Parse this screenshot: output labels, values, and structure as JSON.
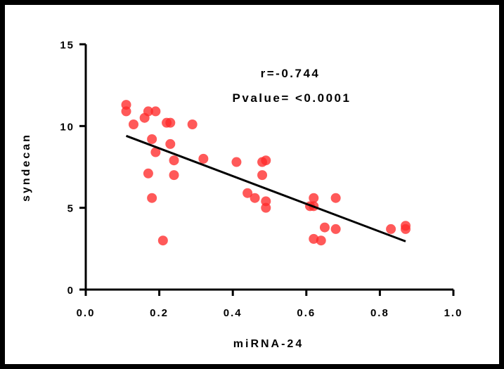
{
  "chart_data": {
    "type": "scatter",
    "xlabel": "miRNA-24",
    "ylabel": "syndecan",
    "xlim": [
      0.0,
      1.0
    ],
    "ylim": [
      0,
      15
    ],
    "xticks": [
      0.0,
      0.2,
      0.4,
      0.6,
      0.8,
      1.0
    ],
    "xtick_labels": [
      "0.0",
      "0.2",
      "0.4",
      "0.6",
      "0.8",
      "1.0"
    ],
    "yticks": [
      0,
      5,
      10,
      15
    ],
    "ytick_labels": [
      "0",
      "5",
      "10",
      "15"
    ],
    "annotations": [
      "r=-0.744",
      "Pvalue= <0.0001"
    ],
    "grid": false,
    "point_color": "#ff2a2a",
    "line_color": "#000000",
    "series": [
      {
        "points": [
          [
            0.11,
            11.3
          ],
          [
            0.11,
            10.9
          ],
          [
            0.13,
            10.1
          ],
          [
            0.16,
            10.5
          ],
          [
            0.17,
            10.9
          ],
          [
            0.19,
            10.9
          ],
          [
            0.22,
            10.2
          ],
          [
            0.23,
            10.2
          ],
          [
            0.29,
            10.1
          ],
          [
            0.18,
            9.2
          ],
          [
            0.23,
            8.9
          ],
          [
            0.19,
            8.4
          ],
          [
            0.24,
            7.9
          ],
          [
            0.17,
            7.1
          ],
          [
            0.24,
            7.0
          ],
          [
            0.32,
            8.0
          ],
          [
            0.41,
            7.8
          ],
          [
            0.48,
            7.8
          ],
          [
            0.49,
            7.9
          ],
          [
            0.48,
            7.0
          ],
          [
            0.18,
            5.6
          ],
          [
            0.44,
            5.9
          ],
          [
            0.46,
            5.6
          ],
          [
            0.49,
            5.4
          ],
          [
            0.49,
            5.0
          ],
          [
            0.21,
            3.0
          ],
          [
            0.61,
            5.1
          ],
          [
            0.62,
            5.1
          ],
          [
            0.62,
            5.6
          ],
          [
            0.68,
            5.6
          ],
          [
            0.65,
            3.8
          ],
          [
            0.68,
            3.7
          ],
          [
            0.62,
            3.1
          ],
          [
            0.64,
            3.0
          ],
          [
            0.83,
            3.7
          ],
          [
            0.87,
            3.9
          ],
          [
            0.87,
            3.7
          ]
        ]
      }
    ],
    "regression_line": {
      "x": [
        0.11,
        0.87
      ],
      "y": [
        9.4,
        2.95
      ]
    }
  }
}
